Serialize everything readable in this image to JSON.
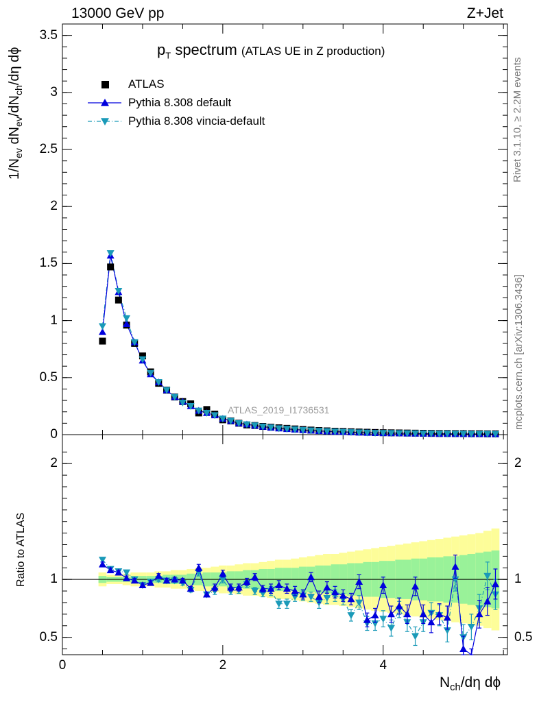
{
  "header": {
    "left": "13000 GeV pp",
    "right": "Z+Jet"
  },
  "main_title": {
    "main": "p",
    "main_sub": "T",
    "main_rest": " spectrum",
    "detail": "(ATLAS UE in Z production)"
  },
  "side_texts": {
    "rivet": "Rivet 3.1.10, ≥ 2.2M events",
    "mcplots": "mcplots.cern.ch [arXiv:1306.3436]"
  },
  "analysis_id": "ATLAS_2019_I1736531",
  "axes": {
    "top_ylabel": "1/N_ev dN_ev/dN_ch/dη dϕ",
    "bottom_ylabel": "Ratio to ATLAS",
    "xlabel": "N_ch/dη dϕ"
  },
  "legend": [
    {
      "label": "ATLAS",
      "color": "#000000",
      "marker": "square"
    },
    {
      "label": "Pythia 8.308 default",
      "color": "#0000dd",
      "marker": "triangle-up"
    },
    {
      "label": "Pythia 8.308 vincia-default",
      "color": "#1a9ab8",
      "marker": "triangle-down"
    }
  ],
  "colors": {
    "atlas": "#000000",
    "default": "#0000dd",
    "vincia": "#1a9ab8",
    "band_green": "#99f299",
    "band_yellow": "#fdfd99"
  },
  "chart_data": [
    {
      "type": "scatter",
      "title": "p_T spectrum (ATLAS UE in Z production)",
      "xlabel": "N_ch/dη dϕ",
      "ylabel": "1/N_ev dN_ev/dN_ch/dη dϕ",
      "xlim": [
        0,
        5.55
      ],
      "ylim": [
        0,
        3.6
      ],
      "yticks": [
        0,
        0.5,
        1,
        1.5,
        2,
        2.5,
        3,
        3.5
      ],
      "x": [
        0.5,
        0.6,
        0.7,
        0.8,
        0.9,
        1.0,
        1.1,
        1.2,
        1.3,
        1.4,
        1.5,
        1.6,
        1.7,
        1.8,
        1.9,
        2.0,
        2.1,
        2.2,
        2.3,
        2.4,
        2.5,
        2.6,
        2.7,
        2.8,
        2.9,
        3.0,
        3.1,
        3.2,
        3.3,
        3.4,
        3.5,
        3.6,
        3.7,
        3.8,
        3.9,
        4.0,
        4.1,
        4.2,
        4.3,
        4.4,
        4.5,
        4.6,
        4.7,
        4.8,
        4.9,
        5.0,
        5.1,
        5.2,
        5.3,
        5.4
      ],
      "series": [
        {
          "name": "ATLAS",
          "values": [
            0.82,
            1.47,
            1.18,
            0.96,
            0.8,
            0.69,
            0.55,
            0.45,
            0.39,
            0.33,
            0.29,
            0.27,
            0.19,
            0.22,
            0.18,
            0.13,
            0.12,
            0.1,
            0.085,
            0.08,
            0.072,
            0.065,
            0.06,
            0.055,
            0.05,
            0.045,
            0.04,
            0.036,
            0.033,
            0.03,
            0.028,
            0.025,
            0.023,
            0.021,
            0.019,
            0.017,
            0.016,
            0.015,
            0.014,
            0.013,
            0.012,
            0.011,
            0.01,
            0.01,
            0.009,
            0.009,
            0.008,
            0.008,
            0.007,
            0.007
          ]
        },
        {
          "name": "Pythia 8.308 default",
          "values": [
            0.9,
            1.57,
            1.25,
            0.97,
            0.81,
            0.65,
            0.53,
            0.46,
            0.39,
            0.33,
            0.29,
            0.25,
            0.21,
            0.19,
            0.17,
            0.14,
            0.12,
            0.1,
            0.09,
            0.08,
            0.07,
            0.062,
            0.055,
            0.05,
            0.045,
            0.04,
            0.036,
            0.032,
            0.029,
            0.026,
            0.024,
            0.021,
            0.019,
            0.017,
            0.015,
            0.014,
            0.013,
            0.012,
            0.011,
            0.01,
            0.009,
            0.009,
            0.008,
            0.008,
            0.007,
            0.007,
            0.006,
            0.006,
            0.006,
            0.005
          ]
        },
        {
          "name": "Pythia 8.308 vincia-default",
          "values": [
            0.95,
            1.59,
            1.26,
            1.02,
            0.81,
            0.66,
            0.54,
            0.46,
            0.39,
            0.33,
            0.28,
            0.25,
            0.21,
            0.19,
            0.17,
            0.14,
            0.12,
            0.1,
            0.09,
            0.08,
            0.07,
            0.062,
            0.055,
            0.05,
            0.045,
            0.04,
            0.036,
            0.032,
            0.029,
            0.026,
            0.024,
            0.021,
            0.019,
            0.017,
            0.015,
            0.014,
            0.013,
            0.012,
            0.011,
            0.01,
            0.009,
            0.009,
            0.008,
            0.008,
            0.007,
            0.007,
            0.006,
            0.006,
            0.006,
            0.005
          ]
        }
      ]
    },
    {
      "type": "scatter",
      "ylabel": "Ratio to ATLAS",
      "xlabel": "N_ch/dη dϕ",
      "xlim": [
        0,
        5.55
      ],
      "ylim": [
        0.35,
        2.25
      ],
      "yticks": [
        0.5,
        1,
        2
      ],
      "xticks": [
        0,
        2,
        4
      ],
      "reference_line": 1,
      "x": [
        0.5,
        0.6,
        0.7,
        0.8,
        0.9,
        1.0,
        1.1,
        1.2,
        1.3,
        1.4,
        1.5,
        1.6,
        1.7,
        1.8,
        1.9,
        2.0,
        2.1,
        2.2,
        2.3,
        2.4,
        2.5,
        2.6,
        2.7,
        2.8,
        2.9,
        3.0,
        3.1,
        3.2,
        3.3,
        3.4,
        3.5,
        3.6,
        3.7,
        3.8,
        3.9,
        4.0,
        4.1,
        4.2,
        4.3,
        4.4,
        4.5,
        4.6,
        4.7,
        4.8,
        4.9,
        5.0,
        5.1,
        5.2,
        5.3,
        5.4
      ],
      "bands": {
        "green_half_width": [
          0.03,
          0.02,
          0.02,
          0.02,
          0.03,
          0.03,
          0.03,
          0.03,
          0.04,
          0.04,
          0.04,
          0.05,
          0.05,
          0.06,
          0.06,
          0.06,
          0.07,
          0.07,
          0.08,
          0.08,
          0.09,
          0.09,
          0.1,
          0.1,
          0.1,
          0.11,
          0.11,
          0.12,
          0.12,
          0.13,
          0.13,
          0.14,
          0.14,
          0.15,
          0.15,
          0.16,
          0.16,
          0.17,
          0.17,
          0.18,
          0.18,
          0.19,
          0.19,
          0.2,
          0.2,
          0.21,
          0.22,
          0.23,
          0.24,
          0.25
        ],
        "yellow_half_width": [
          0.06,
          0.04,
          0.04,
          0.05,
          0.06,
          0.06,
          0.06,
          0.07,
          0.07,
          0.08,
          0.08,
          0.09,
          0.1,
          0.1,
          0.11,
          0.12,
          0.12,
          0.13,
          0.14,
          0.14,
          0.15,
          0.16,
          0.17,
          0.17,
          0.18,
          0.19,
          0.2,
          0.21,
          0.22,
          0.22,
          0.23,
          0.24,
          0.25,
          0.26,
          0.27,
          0.28,
          0.29,
          0.3,
          0.31,
          0.32,
          0.33,
          0.34,
          0.35,
          0.36,
          0.37,
          0.38,
          0.39,
          0.4,
          0.42,
          0.44
        ]
      },
      "series": [
        {
          "name": "Pythia 8.308 default",
          "values": [
            1.13,
            1.08,
            1.06,
            1.01,
            0.99,
            0.95,
            0.97,
            1.03,
            0.99,
            1.0,
            0.99,
            0.92,
            1.1,
            0.87,
            0.93,
            1.05,
            0.93,
            0.93,
            0.98,
            1.02,
            0.92,
            0.92,
            0.95,
            0.92,
            0.9,
            0.87,
            1.02,
            0.85,
            0.93,
            0.89,
            0.86,
            0.83,
            0.98,
            0.65,
            0.69,
            0.95,
            0.7,
            0.77,
            0.7,
            0.94,
            0.7,
            0.63,
            0.7,
            0.67,
            1.11,
            0.4,
            0.29,
            0.7,
            0.81,
            0.96
          ],
          "errors": [
            0.02,
            0.02,
            0.02,
            0.02,
            0.02,
            0.02,
            0.02,
            0.02,
            0.02,
            0.02,
            0.02,
            0.02,
            0.03,
            0.02,
            0.03,
            0.03,
            0.03,
            0.03,
            0.03,
            0.03,
            0.03,
            0.04,
            0.04,
            0.04,
            0.04,
            0.04,
            0.04,
            0.05,
            0.05,
            0.05,
            0.05,
            0.05,
            0.06,
            0.06,
            0.06,
            0.07,
            0.07,
            0.07,
            0.08,
            0.08,
            0.08,
            0.09,
            0.09,
            0.1,
            0.1,
            0.11,
            0.11,
            0.12,
            0.12,
            0.13
          ]
        },
        {
          "name": "Pythia 8.308 vincia-default",
          "values": [
            1.17,
            1.09,
            1.07,
            1.06,
            1.0,
            0.95,
            0.98,
            1.0,
            0.99,
            0.99,
            0.97,
            0.91,
            1.06,
            0.87,
            0.9,
            1.0,
            0.9,
            0.91,
            0.96,
            0.9,
            0.88,
            0.9,
            0.79,
            0.79,
            0.85,
            0.86,
            0.85,
            0.8,
            0.84,
            0.86,
            0.83,
            0.69,
            0.8,
            0.62,
            0.62,
            0.66,
            0.58,
            0.74,
            0.63,
            0.51,
            0.63,
            0.71,
            0.69,
            0.56,
            1.0,
            0.5,
            0.59,
            0.75,
            1.03,
            0.87
          ],
          "errors": [
            0.02,
            0.02,
            0.02,
            0.02,
            0.02,
            0.02,
            0.02,
            0.02,
            0.02,
            0.02,
            0.02,
            0.02,
            0.03,
            0.02,
            0.03,
            0.03,
            0.03,
            0.03,
            0.03,
            0.03,
            0.03,
            0.04,
            0.04,
            0.04,
            0.04,
            0.04,
            0.04,
            0.05,
            0.05,
            0.05,
            0.05,
            0.05,
            0.06,
            0.06,
            0.06,
            0.07,
            0.07,
            0.07,
            0.08,
            0.08,
            0.08,
            0.09,
            0.09,
            0.1,
            0.1,
            0.11,
            0.11,
            0.12,
            0.12,
            0.13
          ]
        }
      ]
    }
  ]
}
